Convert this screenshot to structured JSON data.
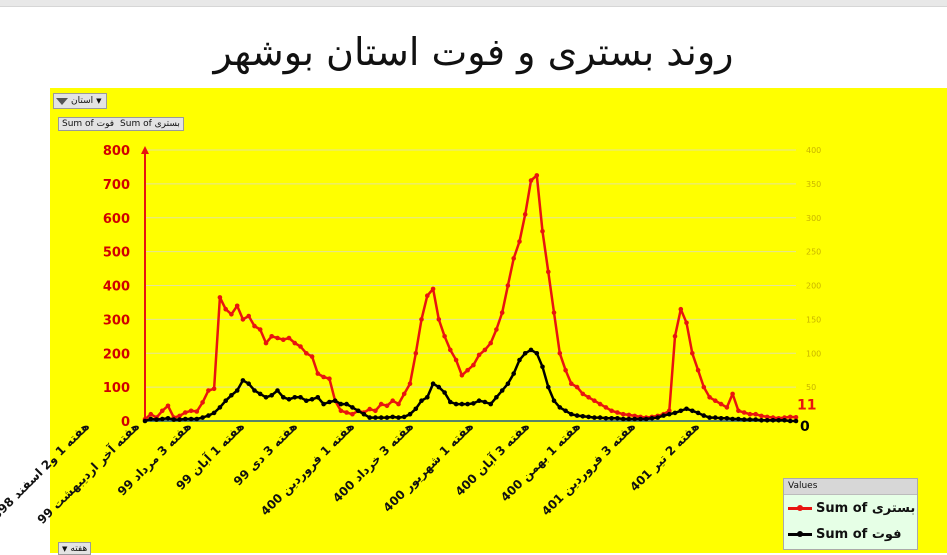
{
  "page": {
    "filter_button_label": "استان",
    "value_buttons": [
      "Sum of بستری",
      "Sum of فوت"
    ],
    "axis_button_label": "هفته"
  },
  "colors": {
    "hospitalized": "#e8140f",
    "deaths": "#000000",
    "background": "#ffff00",
    "legend_bg": "#e6ffe6"
  },
  "icons": {
    "filter": "funnel-icon",
    "dropdown": "chevron-down-icon"
  },
  "chart_data": {
    "type": "line",
    "title": "روند بستری و فوت استان بوشهر",
    "xlabel": "",
    "ylabel": "",
    "ylim": [
      0,
      800
    ],
    "y2lim": [
      0,
      400
    ],
    "y_ticks": [
      0,
      100,
      200,
      300,
      400,
      500,
      600,
      700,
      800
    ],
    "y2_ticks": [
      0,
      50,
      100,
      150,
      200,
      250,
      300,
      350,
      400
    ],
    "x_tick_labels": [
      "هفته 1 و2 اسفند 1398",
      "هفته آخر اردیبهشت 99",
      "هفته 3 مرداد 99",
      "هفته 1 آبان 99",
      "هفته 3 دی 99",
      "هفته 1 فروردین 400",
      "هفته 3 خرداد 400",
      "هفته 1 شهریور 400",
      "هفته 3 آبان 400",
      "هفته 1 بهمن 400",
      "هفته 3 فروردین 401",
      "هفته 2 تیر 401"
    ],
    "legend": {
      "title": "Values",
      "position": "bottom-right"
    },
    "grid": true,
    "series": [
      {
        "name": "Sum of بستری",
        "axis": "left",
        "last_value_label": "11",
        "values": [
          5,
          20,
          10,
          30,
          45,
          10,
          15,
          25,
          30,
          28,
          55,
          90,
          95,
          365,
          330,
          315,
          340,
          300,
          310,
          280,
          270,
          230,
          250,
          245,
          240,
          245,
          230,
          220,
          200,
          190,
          140,
          130,
          125,
          60,
          30,
          25,
          20,
          30,
          25,
          35,
          30,
          50,
          45,
          60,
          50,
          80,
          110,
          200,
          300,
          370,
          390,
          300,
          250,
          210,
          180,
          135,
          150,
          165,
          195,
          210,
          230,
          270,
          320,
          400,
          480,
          530,
          610,
          710,
          725,
          560,
          440,
          320,
          200,
          150,
          110,
          100,
          80,
          70,
          60,
          50,
          40,
          30,
          25,
          20,
          18,
          15,
          12,
          10,
          12,
          15,
          20,
          30,
          250,
          330,
          290,
          200,
          150,
          100,
          70,
          60,
          50,
          40,
          80,
          30,
          25,
          20,
          20,
          15,
          12,
          10,
          8,
          10,
          12,
          11
        ]
      },
      {
        "name": "Sum of فوت",
        "axis": "right",
        "last_value_label": "0",
        "values": [
          0,
          3,
          2,
          3,
          4,
          2,
          2,
          3,
          3,
          3,
          5,
          8,
          12,
          20,
          30,
          38,
          45,
          60,
          55,
          45,
          40,
          35,
          38,
          45,
          35,
          32,
          35,
          35,
          30,
          32,
          35,
          25,
          28,
          30,
          25,
          25,
          20,
          15,
          10,
          5,
          5,
          5,
          5,
          6,
          5,
          6,
          10,
          18,
          30,
          35,
          55,
          50,
          42,
          28,
          25,
          25,
          25,
          26,
          30,
          28,
          25,
          35,
          45,
          55,
          70,
          90,
          100,
          105,
          100,
          80,
          50,
          30,
          20,
          15,
          10,
          8,
          7,
          6,
          5,
          5,
          4,
          4,
          4,
          3,
          3,
          3,
          3,
          3,
          4,
          5,
          8,
          10,
          12,
          15,
          18,
          15,
          12,
          8,
          5,
          5,
          4,
          4,
          3,
          3,
          2,
          2,
          2,
          1,
          1,
          1,
          1,
          1,
          0,
          0
        ]
      }
    ]
  }
}
